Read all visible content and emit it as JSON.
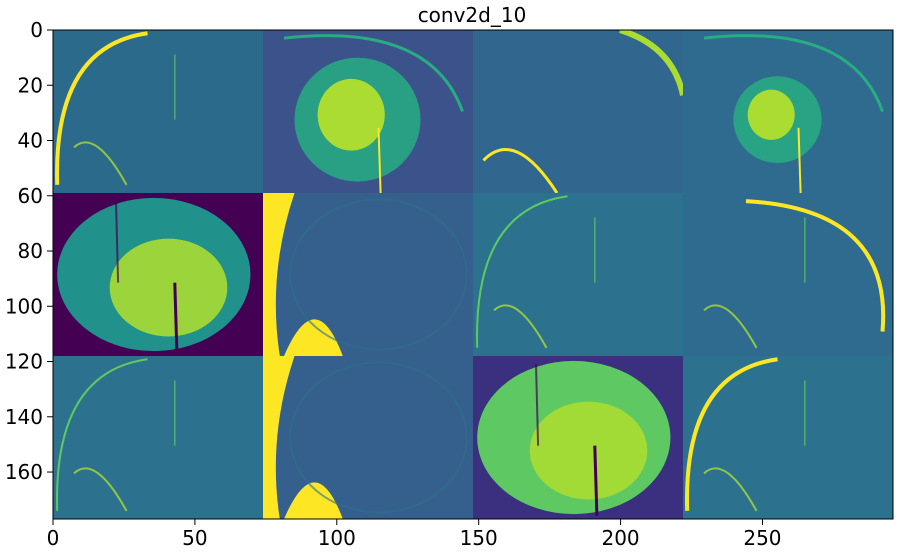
{
  "chart_data": {
    "type": "heatmap",
    "title": "conv2d_10",
    "xlabel": "",
    "ylabel": "",
    "colormap": "viridis",
    "xlim": [
      0,
      296
    ],
    "ylim": [
      177,
      0
    ],
    "grid": false,
    "tile_layout": {
      "rows": 3,
      "cols": 4,
      "tile_width": 74,
      "tile_height": 59
    },
    "x_ticks": [
      0,
      50,
      100,
      150,
      200,
      250
    ],
    "y_ticks": [
      0,
      20,
      40,
      60,
      80,
      100,
      120,
      140,
      160
    ],
    "colors": {
      "dark": "#440154",
      "deep": "#3b2f80",
      "blue": "#3b528b",
      "slate": "#355f8d",
      "teal": "#2c728e",
      "teal2": "#21918c",
      "green": "#27ad81",
      "lime": "#5ec962",
      "yellowgreen": "#aadc32",
      "yellow": "#fde725"
    },
    "tiles": [
      {
        "name": "tile-r1c1",
        "bg": "#2c6a8b",
        "pattern": "arc-left",
        "highlight": 0.95
      },
      {
        "name": "tile-r1c2",
        "bg": "#3b528b",
        "pattern": "blob",
        "highlight": 0.85
      },
      {
        "name": "tile-r1c3",
        "bg": "#31668e",
        "pattern": "arc-corner",
        "highlight": 0.9
      },
      {
        "name": "tile-r1c4",
        "bg": "#2f6b8e",
        "pattern": "blob-small",
        "highlight": 0.75
      },
      {
        "name": "tile-r2c1",
        "bg": "#440154",
        "pattern": "disc",
        "highlight": 0.9
      },
      {
        "name": "tile-r2c2",
        "bg": "#355f8d",
        "pattern": "yellow-edges",
        "highlight": 1.0
      },
      {
        "name": "tile-r2c3",
        "bg": "#2c728e",
        "pattern": "arc-thin",
        "highlight": 0.7
      },
      {
        "name": "tile-r2c4",
        "bg": "#2f6b8e",
        "pattern": "arc-right",
        "highlight": 0.9
      },
      {
        "name": "tile-r3c1",
        "bg": "#2c728e",
        "pattern": "arc-left-thin",
        "highlight": 0.8
      },
      {
        "name": "tile-r3c2",
        "bg": "#355f8d",
        "pattern": "yellow-edges",
        "highlight": 1.0
      },
      {
        "name": "tile-r3c3",
        "bg": "#3b2f80",
        "pattern": "disc-green",
        "highlight": 0.9
      },
      {
        "name": "tile-r3c4",
        "bg": "#2c728e",
        "pattern": "arc-left",
        "highlight": 0.75
      }
    ]
  }
}
